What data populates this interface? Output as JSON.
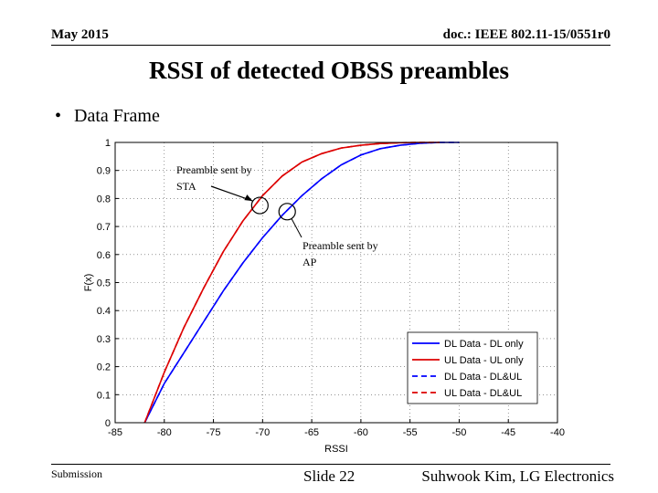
{
  "header": {
    "date": "May 2015",
    "doc_id": "doc.: IEEE 802.11-15/0551r0"
  },
  "slide": {
    "title": "RSSI of detected OBSS preambles",
    "bullet": "Data Frame"
  },
  "footer": {
    "submission": "Submission",
    "slide_number": "Slide 22",
    "author": "Suhwook Kim, LG Electronics"
  },
  "colors": {
    "blue": "#0000ff",
    "red": "#dd0000"
  },
  "chart_data": {
    "type": "line",
    "xlabel": "RSSI",
    "ylabel": "F(x)",
    "xlim": [
      -85,
      -40
    ],
    "ylim": [
      0,
      1
    ],
    "x_ticks": [
      "-85",
      "-80",
      "-75",
      "-70",
      "-65",
      "-60",
      "-55",
      "-50",
      "-45",
      "-40"
    ],
    "y_ticks": [
      "0",
      "0.1",
      "0.2",
      "0.3",
      "0.4",
      "0.5",
      "0.6",
      "0.7",
      "0.8",
      "0.9",
      "1"
    ],
    "grid": true,
    "legend_position": "lower-right",
    "series": [
      {
        "name": "DL Data - DL only",
        "color": "#0000ff",
        "style": "solid",
        "x": [
          -82,
          -80,
          -78,
          -76,
          -74,
          -72,
          -70,
          -68,
          -66,
          -64,
          -62,
          -60,
          -58,
          -56,
          -54,
          -52,
          -50
        ],
        "y": [
          0,
          0.14,
          0.25,
          0.36,
          0.47,
          0.57,
          0.66,
          0.74,
          0.81,
          0.87,
          0.92,
          0.955,
          0.978,
          0.99,
          0.997,
          1,
          1
        ]
      },
      {
        "name": "UL Data - UL only",
        "color": "#dd0000",
        "style": "solid",
        "x": [
          -82,
          -80,
          -78,
          -76,
          -74,
          -72,
          -70,
          -68,
          -66,
          -64,
          -62,
          -60,
          -58,
          -56,
          -54,
          -52
        ],
        "y": [
          0,
          0.18,
          0.34,
          0.48,
          0.61,
          0.72,
          0.81,
          0.88,
          0.93,
          0.96,
          0.98,
          0.99,
          0.996,
          0.999,
          1,
          1
        ]
      },
      {
        "name": "DL Data - DL&UL",
        "color": "#0000ff",
        "style": "dashed",
        "x": [
          -82,
          -80,
          -78,
          -76,
          -74,
          -72,
          -70,
          -68,
          -66,
          -64,
          -62,
          -60,
          -58,
          -56,
          -54,
          -52,
          -50
        ],
        "y": [
          0,
          0.14,
          0.25,
          0.36,
          0.47,
          0.57,
          0.66,
          0.74,
          0.81,
          0.87,
          0.92,
          0.955,
          0.978,
          0.99,
          0.997,
          1,
          1
        ]
      },
      {
        "name": "UL Data - DL&UL",
        "color": "#dd0000",
        "style": "dashed",
        "x": [
          -82,
          -80,
          -78,
          -76,
          -74,
          -72,
          -70,
          -68,
          -66,
          -64,
          -62,
          -60,
          -58,
          -56,
          -54,
          -52
        ],
        "y": [
          0,
          0.18,
          0.34,
          0.48,
          0.61,
          0.72,
          0.81,
          0.88,
          0.93,
          0.96,
          0.98,
          0.99,
          0.996,
          0.999,
          1,
          1
        ]
      }
    ],
    "annotations": [
      {
        "label": "Preamble sent by STA",
        "line1": "Preamble sent by",
        "line2": "STA",
        "x": -70,
        "y": 0.775
      },
      {
        "label": "Preamble sent by AP",
        "line1": "Preamble sent by",
        "line2": "AP",
        "x": -67.5,
        "y": 0.753
      }
    ]
  }
}
